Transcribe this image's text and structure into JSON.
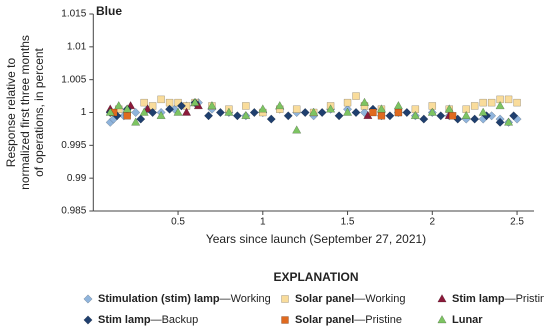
{
  "chart_data": {
    "type": "scatter",
    "title": "Blue",
    "ylabel": [
      "Response relative to",
      "normalized first three months",
      "of operations, in percent"
    ],
    "xlabel": "Years since launch (September 27, 2021)",
    "legend_title": "EXPLANATION",
    "xlim": [
      0,
      2.6
    ],
    "xticks": [
      0.5,
      1,
      1.5,
      2,
      2.5
    ],
    "ylim": [
      0.985,
      1.015
    ],
    "yticks": [
      0.985,
      0.99,
      0.995,
      1,
      1.005,
      1.01,
      1.015
    ],
    "grid": false,
    "series": [
      {
        "name": "Stimulation (stim) lamp—Working",
        "color": "#8fb4dc",
        "marker": "diamond",
        "x": [
          0.1,
          0.12,
          0.18,
          0.25,
          0.32,
          0.4,
          0.48,
          0.55,
          0.62,
          0.7,
          0.8,
          0.9,
          1.0,
          1.1,
          1.2,
          1.3,
          1.4,
          1.5,
          1.6,
          1.7,
          1.8,
          1.9,
          2.0,
          2.1,
          2.2,
          2.3,
          2.35,
          2.4,
          2.45,
          2.5
        ],
        "values": [
          0.9985,
          0.999,
          0.9995,
          1.0,
          1.0005,
          1.0,
          1.0005,
          1.001,
          1.0015,
          1.0005,
          1.0,
          0.9995,
          1.0,
          1.0005,
          1.0,
          0.9995,
          1.0005,
          1.0005,
          1.0,
          0.9995,
          1.0,
          0.9995,
          1.0,
          0.9995,
          0.999,
          0.999,
          0.9995,
          0.999,
          0.9985,
          0.999
        ]
      },
      {
        "name": "Solar panel—Working",
        "color": "#f9dc9b",
        "marker": "square",
        "x": [
          0.15,
          0.2,
          0.3,
          0.35,
          0.4,
          0.45,
          0.5,
          0.55,
          0.6,
          0.7,
          0.8,
          0.9,
          1.0,
          1.1,
          1.2,
          1.3,
          1.4,
          1.5,
          1.55,
          1.6,
          1.7,
          1.8,
          1.9,
          2.0,
          2.1,
          2.2,
          2.25,
          2.3,
          2.35,
          2.4,
          2.45,
          2.5
        ],
        "values": [
          1.0005,
          1.0,
          1.0015,
          1.001,
          1.002,
          1.0015,
          1.0015,
          1.001,
          1.0015,
          1.001,
          1.0005,
          1.001,
          1.0,
          1.0005,
          1.0005,
          1.0,
          1.001,
          1.0015,
          1.0025,
          1.001,
          1.0005,
          1.0,
          1.0005,
          1.001,
          1.0005,
          1.0005,
          1.001,
          1.0015,
          1.0015,
          1.002,
          1.002,
          1.0015
        ]
      },
      {
        "name": "Stim lamp—Pristine",
        "color": "#8b1a3a",
        "marker": "triangle",
        "x": [
          0.1,
          0.22,
          0.32,
          0.55,
          0.62,
          1.62,
          2.1
        ],
        "values": [
          1.0005,
          1.001,
          1.0005,
          1.0,
          1.001,
          0.9995,
          0.9995
        ]
      },
      {
        "name": "Stim lamp—Backup",
        "color": "#1f3f6e",
        "marker": "diamond",
        "x": [
          0.1,
          0.14,
          0.2,
          0.28,
          0.35,
          0.45,
          0.52,
          0.6,
          0.68,
          0.75,
          0.85,
          0.95,
          1.05,
          1.15,
          1.25,
          1.35,
          1.45,
          1.55,
          1.65,
          1.75,
          1.85,
          1.95,
          2.05,
          2.15,
          2.25,
          2.32,
          2.4,
          2.48
        ],
        "values": [
          1.0,
          0.9995,
          1.0005,
          0.999,
          1.0,
          1.0005,
          1.001,
          1.0015,
          0.9995,
          1.0,
          0.9995,
          1.0,
          0.999,
          0.9995,
          1.0,
          1.0,
          0.9995,
          1.0,
          1.0005,
          0.9995,
          1.0,
          0.999,
          0.9995,
          0.999,
          0.999,
          0.9995,
          0.9985,
          0.9995
        ]
      },
      {
        "name": "Solar panel—Pristine",
        "color": "#e06a1f",
        "marker": "square",
        "x": [
          0.12,
          0.2,
          1.65,
          1.7,
          1.8,
          2.12
        ],
        "values": [
          1.0,
          0.9995,
          1.0,
          0.9995,
          1.0,
          0.9995
        ]
      },
      {
        "name": "Lunar",
        "color": "#7dc462",
        "marker": "triangle",
        "x": [
          0.1,
          0.15,
          0.2,
          0.25,
          0.3,
          0.4,
          0.5,
          0.6,
          0.7,
          0.8,
          0.9,
          1.0,
          1.1,
          1.2,
          1.3,
          1.4,
          1.5,
          1.6,
          1.7,
          1.8,
          1.9,
          2.0,
          2.1,
          2.2,
          2.3,
          2.4,
          2.45
        ],
        "values": [
          1.0,
          1.001,
          1.0005,
          0.9985,
          1.0,
          0.9995,
          1.0,
          1.0015,
          1.001,
          1.0,
          0.9995,
          1.0005,
          1.001,
          0.9973,
          1.0,
          1.0005,
          1.0,
          1.0015,
          1.0005,
          1.001,
          0.9995,
          1.0,
          1.0005,
          0.9995,
          1.0,
          1.001,
          0.9985
        ]
      }
    ]
  }
}
